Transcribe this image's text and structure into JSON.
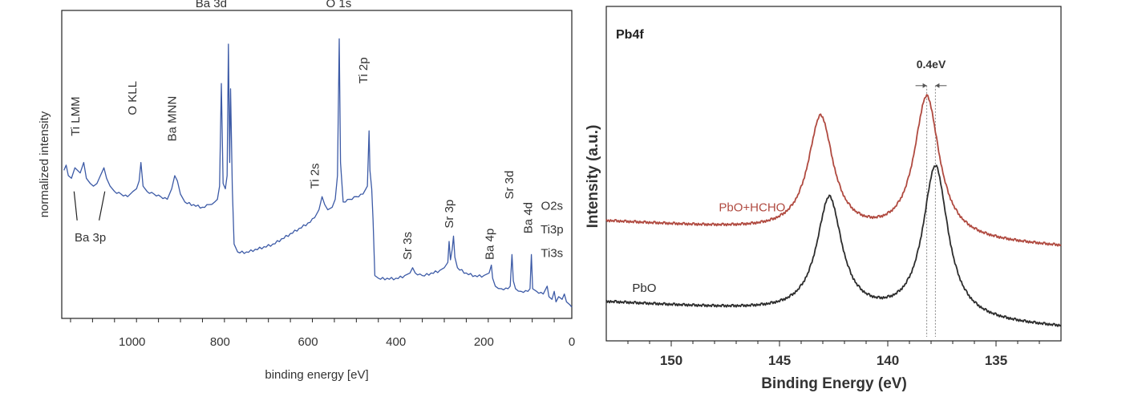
{
  "chart_data": [
    {
      "type": "line",
      "xlabel": "binding energy [eV]",
      "ylabel": "normalized intensity",
      "x_reversed": true,
      "xlim": [
        1160,
        0
      ],
      "ylim": [
        0,
        1
      ],
      "xticks": [
        1000,
        800,
        600,
        400,
        200,
        0
      ],
      "series_color": "#3c5aa6",
      "series": [
        {
          "points": [
            [
              1155,
              0.52
            ],
            [
              1150,
              0.54
            ],
            [
              1145,
              0.5
            ],
            [
              1138,
              0.49
            ],
            [
              1130,
              0.53
            ],
            [
              1118,
              0.51
            ],
            [
              1110,
              0.55
            ],
            [
              1104,
              0.49
            ],
            [
              1095,
              0.47
            ],
            [
              1088,
              0.46
            ],
            [
              1080,
              0.47
            ],
            [
              1072,
              0.5
            ],
            [
              1064,
              0.53
            ],
            [
              1058,
              0.49
            ],
            [
              1050,
              0.46
            ],
            [
              1040,
              0.44
            ],
            [
              1025,
              0.43
            ],
            [
              1010,
              0.42
            ],
            [
              998,
              0.44
            ],
            [
              990,
              0.45
            ],
            [
              984,
              0.48
            ],
            [
              980,
              0.55
            ],
            [
              975,
              0.46
            ],
            [
              966,
              0.44
            ],
            [
              950,
              0.43
            ],
            [
              935,
              0.42
            ],
            [
              920,
              0.41
            ],
            [
              910,
              0.45
            ],
            [
              903,
              0.5
            ],
            [
              897,
              0.48
            ],
            [
              890,
              0.43
            ],
            [
              880,
              0.4
            ],
            [
              860,
              0.39
            ],
            [
              840,
              0.38
            ],
            [
              825,
              0.39
            ],
            [
              812,
              0.4
            ],
            [
              806,
              0.41
            ],
            [
              801,
              0.46
            ],
            [
              797,
              0.85
            ],
            [
              793,
              0.47
            ],
            [
              788,
              0.45
            ],
            [
              784,
              0.5
            ],
            [
              781,
              1.0
            ],
            [
              778,
              0.55
            ],
            [
              776,
              0.83
            ],
            [
              772,
              0.45
            ],
            [
              768,
              0.24
            ],
            [
              760,
              0.21
            ],
            [
              740,
              0.21
            ],
            [
              720,
              0.22
            ],
            [
              700,
              0.23
            ],
            [
              680,
              0.24
            ],
            [
              660,
              0.26
            ],
            [
              640,
              0.28
            ],
            [
              620,
              0.3
            ],
            [
              600,
              0.32
            ],
            [
              585,
              0.34
            ],
            [
              575,
              0.37
            ],
            [
              568,
              0.42
            ],
            [
              562,
              0.39
            ],
            [
              555,
              0.37
            ],
            [
              545,
              0.38
            ],
            [
              538,
              0.41
            ],
            [
              533,
              0.5
            ],
            [
              529,
              1.02
            ],
            [
              526,
              0.55
            ],
            [
              520,
              0.4
            ],
            [
              505,
              0.41
            ],
            [
              490,
              0.42
            ],
            [
              475,
              0.43
            ],
            [
              465,
              0.46
            ],
            [
              461,
              0.67
            ],
            [
              459,
              0.52
            ],
            [
              455,
              0.45
            ],
            [
              452,
              0.33
            ],
            [
              448,
              0.12
            ],
            [
              440,
              0.11
            ],
            [
              420,
              0.11
            ],
            [
              400,
              0.11
            ],
            [
              380,
              0.12
            ],
            [
              368,
              0.13
            ],
            [
              362,
              0.15
            ],
            [
              356,
              0.13
            ],
            [
              340,
              0.12
            ],
            [
              320,
              0.13
            ],
            [
              300,
              0.14
            ],
            [
              290,
              0.15
            ],
            [
              282,
              0.17
            ],
            [
              279,
              0.25
            ],
            [
              276,
              0.18
            ],
            [
              272,
              0.22
            ],
            [
              269,
              0.27
            ],
            [
              266,
              0.19
            ],
            [
              260,
              0.15
            ],
            [
              240,
              0.13
            ],
            [
              220,
              0.12
            ],
            [
              200,
              0.12
            ],
            [
              188,
              0.13
            ],
            [
              183,
              0.16
            ],
            [
              180,
              0.11
            ],
            [
              174,
              0.08
            ],
            [
              160,
              0.07
            ],
            [
              145,
              0.07
            ],
            [
              140,
              0.08
            ],
            [
              136,
              0.2
            ],
            [
              133,
              0.1
            ],
            [
              128,
              0.07
            ],
            [
              115,
              0.06
            ],
            [
              100,
              0.06
            ],
            [
              95,
              0.07
            ],
            [
              92,
              0.2
            ],
            [
              89,
              0.07
            ],
            [
              80,
              0.06
            ],
            [
              65,
              0.05
            ],
            [
              56,
              0.08
            ],
            [
              52,
              0.04
            ],
            [
              45,
              0.03
            ],
            [
              40,
              0.06
            ],
            [
              36,
              0.02
            ],
            [
              30,
              0.04
            ],
            [
              22,
              0.03
            ],
            [
              17,
              0.05
            ],
            [
              12,
              0.02
            ],
            [
              5,
              0.01
            ],
            [
              0,
              0.0
            ]
          ]
        }
      ],
      "annotations": [
        {
          "text": "Ti LMM",
          "x": 1120,
          "y": 0.65,
          "rotation": -90
        },
        {
          "text": "O KLL",
          "x": 990,
          "y": 0.73,
          "rotation": -90
        },
        {
          "text": "Ba MNN",
          "x": 900,
          "y": 0.63,
          "rotation": -90
        },
        {
          "text": "Ba 3d",
          "x": 820,
          "y": 1.14,
          "rotation": 0
        },
        {
          "text": "O 1s",
          "x": 530,
          "y": 1.14,
          "rotation": 0
        },
        {
          "text": "Ti 2p",
          "x": 465,
          "y": 0.85,
          "rotation": -90
        },
        {
          "text": "Ti 2s",
          "x": 575,
          "y": 0.45,
          "rotation": -90
        },
        {
          "text": "Sr 3s",
          "x": 365,
          "y": 0.18,
          "rotation": -90
        },
        {
          "text": "Sr 3p",
          "x": 270,
          "y": 0.3,
          "rotation": -90
        },
        {
          "text": "Ba 4p",
          "x": 178,
          "y": 0.18,
          "rotation": -90
        },
        {
          "text": "Sr 3d",
          "x": 133,
          "y": 0.41,
          "rotation": -90
        },
        {
          "text": "Ba 4d",
          "x": 90,
          "y": 0.28,
          "rotation": -90
        },
        {
          "text": "Ba 3p",
          "x": 1095,
          "y": 0.25,
          "rotation": 0
        },
        {
          "text": "O2s",
          "x": 45,
          "y": 0.37,
          "rotation": 0
        },
        {
          "text": "Ti3p",
          "x": 45,
          "y": 0.28,
          "rotation": 0
        },
        {
          "text": "Ti3s",
          "x": 45,
          "y": 0.19,
          "rotation": 0
        }
      ]
    },
    {
      "type": "line",
      "panel_label": "Pb4f",
      "xlabel": "Binding Energy (eV)",
      "ylabel": "Intensity (a.u.)",
      "x_reversed": true,
      "xlim": [
        153,
        132
      ],
      "ylim": [
        0,
        1
      ],
      "xticks": [
        150,
        145,
        140,
        135
      ],
      "series": [
        {
          "name": "PbO+HCHO",
          "color": "#b04a40",
          "center1": 143.1,
          "center2": 138.2,
          "height1": 0.4,
          "height2": 0.49,
          "fwhm": 1.4,
          "baseline_start": 0.4,
          "baseline_end": 0.31
        },
        {
          "name": "PbO",
          "color": "#2d2d2d",
          "center1": 142.7,
          "center2": 137.8,
          "height1": 0.4,
          "height2": 0.53,
          "fwhm": 1.4,
          "baseline_start": 0.12,
          "baseline_end": 0.03
        }
      ],
      "annotations": [
        {
          "text": "0.4eV",
          "between": [
            138.2,
            137.8
          ]
        }
      ]
    }
  ]
}
